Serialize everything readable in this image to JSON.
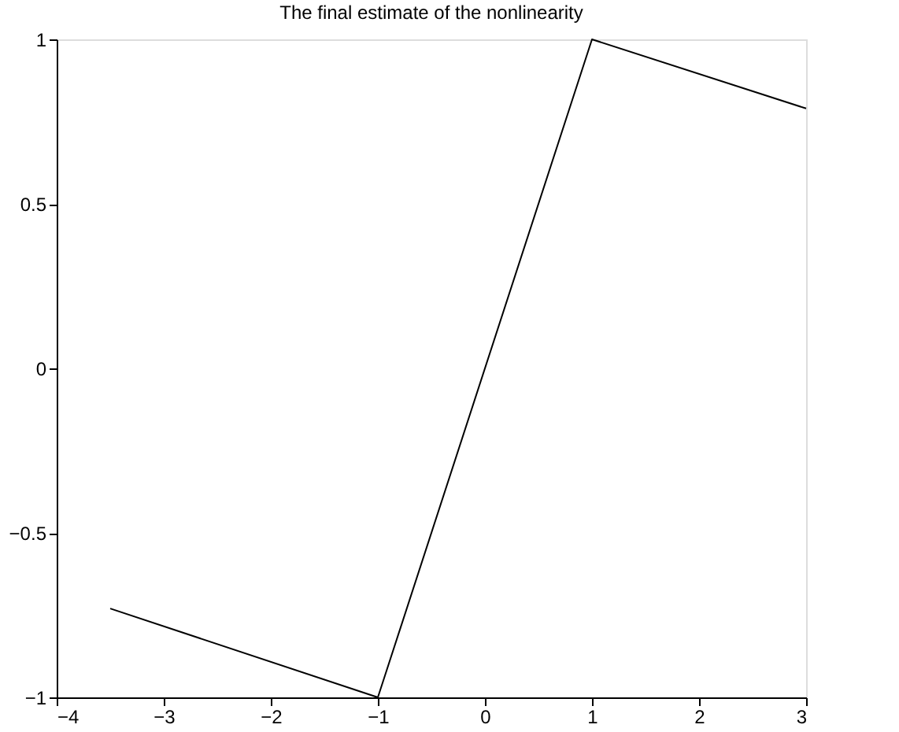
{
  "chart_data": {
    "type": "line",
    "title": "The final estimate of the nonlinearity",
    "x": [
      -3.5,
      -1,
      1,
      3
    ],
    "series": [
      {
        "color": "#000000",
        "values": [
          -0.73,
          -1,
          1,
          0.79
        ]
      }
    ],
    "xlim": [
      -4,
      3
    ],
    "ylim": [
      -1,
      1
    ],
    "xticks": [
      -4,
      -3,
      -2,
      -1,
      0,
      1,
      2,
      3
    ],
    "yticks": [
      -1,
      -0.5,
      0,
      0.5,
      1
    ],
    "grid": false,
    "marker": "none",
    "line_style": "solid"
  }
}
